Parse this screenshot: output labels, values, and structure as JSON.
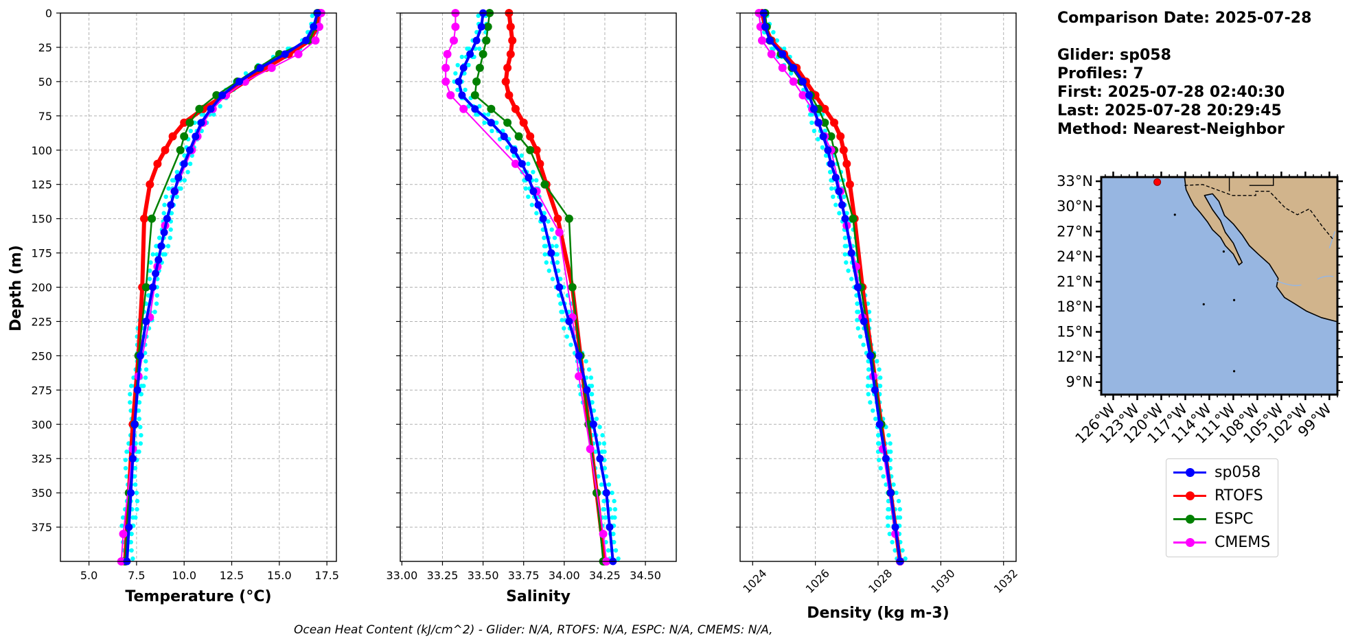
{
  "info": {
    "comparison_date": "Comparison Date: 2025-07-28",
    "glider": "Glider: sp058",
    "profiles": "Profiles: 7",
    "first": "First: 2025-07-28 02:40:30",
    "last": "Last: 2025-07-28 20:29:45",
    "method": "Method: Nearest-Neighbor"
  },
  "footer": "Ocean Heat Content (kJ/cm^2) - Glider: N/A,  RTOFS: N/A,  ESPC: N/A,  CMEMS: N/A,",
  "colors": {
    "sp058": "#0000ff",
    "sp058_raw": "#00ffff",
    "rtofs": "#ff0000",
    "espc": "#008000",
    "cmems": "#ff00ff",
    "ocean": "#97b6e1",
    "land": "#d1b48c"
  },
  "legend": [
    {
      "label": "sp058",
      "color": "#0000ff"
    },
    {
      "label": "RTOFS",
      "color": "#ff0000"
    },
    {
      "label": "ESPC",
      "color": "#008000"
    },
    {
      "label": "CMEMS",
      "color": "#ff00ff"
    }
  ],
  "chart_data": [
    {
      "type": "line",
      "xlabel": "Temperature (°C)",
      "ylabel": "Depth (m)",
      "xlim": [
        3.5,
        18.0
      ],
      "ylim": [
        400,
        0
      ],
      "grid": true,
      "xticks": [
        "5.0",
        "7.5",
        "10.0",
        "12.5",
        "15.0",
        "17.5"
      ],
      "yticks": [
        "0",
        "25",
        "50",
        "75",
        "100",
        "125",
        "150",
        "175",
        "200",
        "225",
        "250",
        "275",
        "300",
        "325",
        "350",
        "375"
      ],
      "series": [
        {
          "name": "RTOFS",
          "depth": [
            0,
            10,
            20,
            30,
            40,
            50,
            60,
            70,
            80,
            90,
            100,
            110,
            125,
            150,
            200,
            250,
            300,
            350,
            400
          ],
          "values": [
            17.1,
            17.0,
            16.6,
            15.5,
            14.3,
            13.2,
            12.1,
            11.0,
            10.0,
            9.4,
            9.0,
            8.6,
            8.2,
            7.9,
            7.8,
            7.6,
            7.3,
            7.1,
            6.9
          ]
        },
        {
          "name": "ESPC",
          "depth": [
            0,
            10,
            20,
            30,
            40,
            50,
            60,
            70,
            80,
            90,
            100,
            150,
            200,
            250,
            300,
            350,
            400
          ],
          "values": [
            17.0,
            16.9,
            16.6,
            15.0,
            13.9,
            12.8,
            11.7,
            10.8,
            10.3,
            10.0,
            9.8,
            8.3,
            8.0,
            7.6,
            7.4,
            7.1,
            6.9
          ]
        },
        {
          "name": "CMEMS",
          "depth": [
            0,
            10,
            20,
            30,
            40,
            50,
            60,
            70,
            80,
            90,
            100,
            130,
            155,
            185,
            222,
            265,
            318,
            380,
            400
          ],
          "values": [
            17.2,
            17.1,
            16.9,
            16.0,
            14.6,
            13.2,
            12.2,
            11.5,
            11.0,
            10.7,
            10.4,
            9.5,
            9.0,
            8.6,
            8.2,
            7.6,
            7.3,
            6.8,
            6.7
          ]
        },
        {
          "name": "sp058",
          "depth": [
            0,
            10,
            20,
            30,
            40,
            50,
            60,
            70,
            80,
            90,
            100,
            110,
            120,
            130,
            140,
            150,
            160,
            170,
            180,
            190,
            200,
            225,
            250,
            275,
            300,
            325,
            350,
            375,
            400
          ],
          "values": [
            17.0,
            16.8,
            16.4,
            15.3,
            14.0,
            12.9,
            12.0,
            11.4,
            10.9,
            10.6,
            10.3,
            10.0,
            9.7,
            9.5,
            9.3,
            9.1,
            8.95,
            8.8,
            8.65,
            8.5,
            8.35,
            8.0,
            7.7,
            7.55,
            7.4,
            7.3,
            7.2,
            7.1,
            7.0
          ]
        }
      ]
    },
    {
      "type": "line",
      "xlabel": "Salinity",
      "xlim": [
        32.99,
        34.69
      ],
      "ylim": [
        400,
        0
      ],
      "grid": true,
      "xticks": [
        "33.00",
        "33.25",
        "33.50",
        "33.75",
        "34.00",
        "34.25",
        "34.50"
      ],
      "series": [
        {
          "name": "RTOFS",
          "depth": [
            0,
            10,
            20,
            30,
            40,
            50,
            60,
            70,
            80,
            90,
            100,
            110,
            125,
            150,
            200,
            250,
            300,
            350,
            400
          ],
          "values": [
            33.66,
            33.67,
            33.68,
            33.67,
            33.65,
            33.64,
            33.66,
            33.7,
            33.75,
            33.79,
            33.83,
            33.85,
            33.89,
            33.96,
            34.05,
            34.1,
            34.15,
            34.2,
            34.25
          ]
        },
        {
          "name": "ESPC",
          "depth": [
            0,
            10,
            20,
            30,
            40,
            50,
            60,
            70,
            80,
            90,
            100,
            125,
            150,
            200,
            250,
            300,
            350,
            400
          ],
          "values": [
            33.54,
            33.53,
            33.52,
            33.5,
            33.48,
            33.46,
            33.45,
            33.55,
            33.65,
            33.72,
            33.79,
            33.88,
            34.03,
            34.05,
            34.1,
            34.15,
            34.2,
            34.24
          ]
        },
        {
          "name": "CMEMS",
          "depth": [
            0,
            10,
            20,
            30,
            40,
            50,
            60,
            70,
            110,
            130,
            160,
            222,
            265,
            318,
            380,
            400
          ],
          "values": [
            33.33,
            33.33,
            33.32,
            33.28,
            33.27,
            33.27,
            33.3,
            33.38,
            33.7,
            33.83,
            33.97,
            34.05,
            34.09,
            34.16,
            34.24,
            34.26
          ]
        },
        {
          "name": "sp058",
          "depth": [
            0,
            10,
            20,
            30,
            40,
            50,
            60,
            70,
            80,
            90,
            100,
            110,
            120,
            130,
            140,
            150,
            175,
            200,
            225,
            250,
            275,
            300,
            325,
            350,
            375,
            400
          ],
          "values": [
            33.5,
            33.49,
            33.46,
            33.42,
            33.38,
            33.35,
            33.37,
            33.45,
            33.55,
            33.63,
            33.69,
            33.74,
            33.78,
            33.81,
            33.84,
            33.87,
            33.92,
            33.97,
            34.03,
            34.09,
            34.14,
            34.18,
            34.22,
            34.26,
            34.28,
            34.3
          ]
        }
      ]
    },
    {
      "type": "line",
      "xlabel": "Density (kg m-3)",
      "xlim": [
        1023.6,
        1032.4
      ],
      "ylim": [
        400,
        0
      ],
      "grid": true,
      "xticks": [
        "1024",
        "1026",
        "1028",
        "1030",
        "1032"
      ],
      "series": [
        {
          "name": "RTOFS",
          "depth": [
            0,
            10,
            20,
            30,
            40,
            50,
            60,
            70,
            80,
            90,
            100,
            110,
            125,
            150,
            200,
            250,
            300,
            350,
            400
          ],
          "values": [
            1024.3,
            1024.4,
            1024.6,
            1025.0,
            1025.4,
            1025.7,
            1026.0,
            1026.3,
            1026.6,
            1026.8,
            1026.9,
            1027.0,
            1027.1,
            1027.25,
            1027.5,
            1027.8,
            1028.1,
            1028.4,
            1028.7
          ]
        },
        {
          "name": "ESPC",
          "depth": [
            0,
            10,
            20,
            30,
            40,
            50,
            60,
            70,
            80,
            90,
            100,
            150,
            200,
            250,
            300,
            350,
            400
          ],
          "values": [
            1024.4,
            1024.45,
            1024.55,
            1024.9,
            1025.25,
            1025.55,
            1025.85,
            1026.1,
            1026.3,
            1026.5,
            1026.6,
            1027.2,
            1027.45,
            1027.8,
            1028.1,
            1028.4,
            1028.7
          ]
        },
        {
          "name": "CMEMS",
          "depth": [
            0,
            10,
            20,
            30,
            40,
            50,
            60,
            70,
            80,
            90,
            100,
            130,
            155,
            185,
            222,
            265,
            318,
            380,
            400
          ],
          "values": [
            1024.2,
            1024.25,
            1024.3,
            1024.6,
            1024.95,
            1025.3,
            1025.6,
            1025.9,
            1026.1,
            1026.3,
            1026.5,
            1026.8,
            1027.0,
            1027.3,
            1027.5,
            1027.85,
            1028.15,
            1028.55,
            1028.7
          ]
        },
        {
          "name": "sp058",
          "depth": [
            0,
            10,
            20,
            30,
            40,
            50,
            60,
            70,
            80,
            90,
            100,
            110,
            120,
            130,
            140,
            150,
            175,
            200,
            225,
            250,
            275,
            300,
            325,
            350,
            375,
            400
          ],
          "values": [
            1024.35,
            1024.4,
            1024.55,
            1024.95,
            1025.3,
            1025.6,
            1025.8,
            1025.95,
            1026.1,
            1026.25,
            1026.4,
            1026.5,
            1026.65,
            1026.75,
            1026.85,
            1026.95,
            1027.15,
            1027.35,
            1027.55,
            1027.75,
            1027.9,
            1028.05,
            1028.25,
            1028.4,
            1028.55,
            1028.7
          ]
        }
      ]
    }
  ],
  "map": {
    "lat_ticks": [
      "33°N",
      "30°N",
      "27°N",
      "24°N",
      "21°N",
      "18°N",
      "15°N",
      "12°N",
      "9°N"
    ],
    "lon_ticks": [
      "126°W",
      "123°W",
      "120°W",
      "117°W",
      "114°W",
      "111°W",
      "108°W",
      "105°W",
      "102°W",
      "99°W"
    ],
    "glider_position": {
      "lon": -120.5,
      "lat": 32.9
    }
  }
}
